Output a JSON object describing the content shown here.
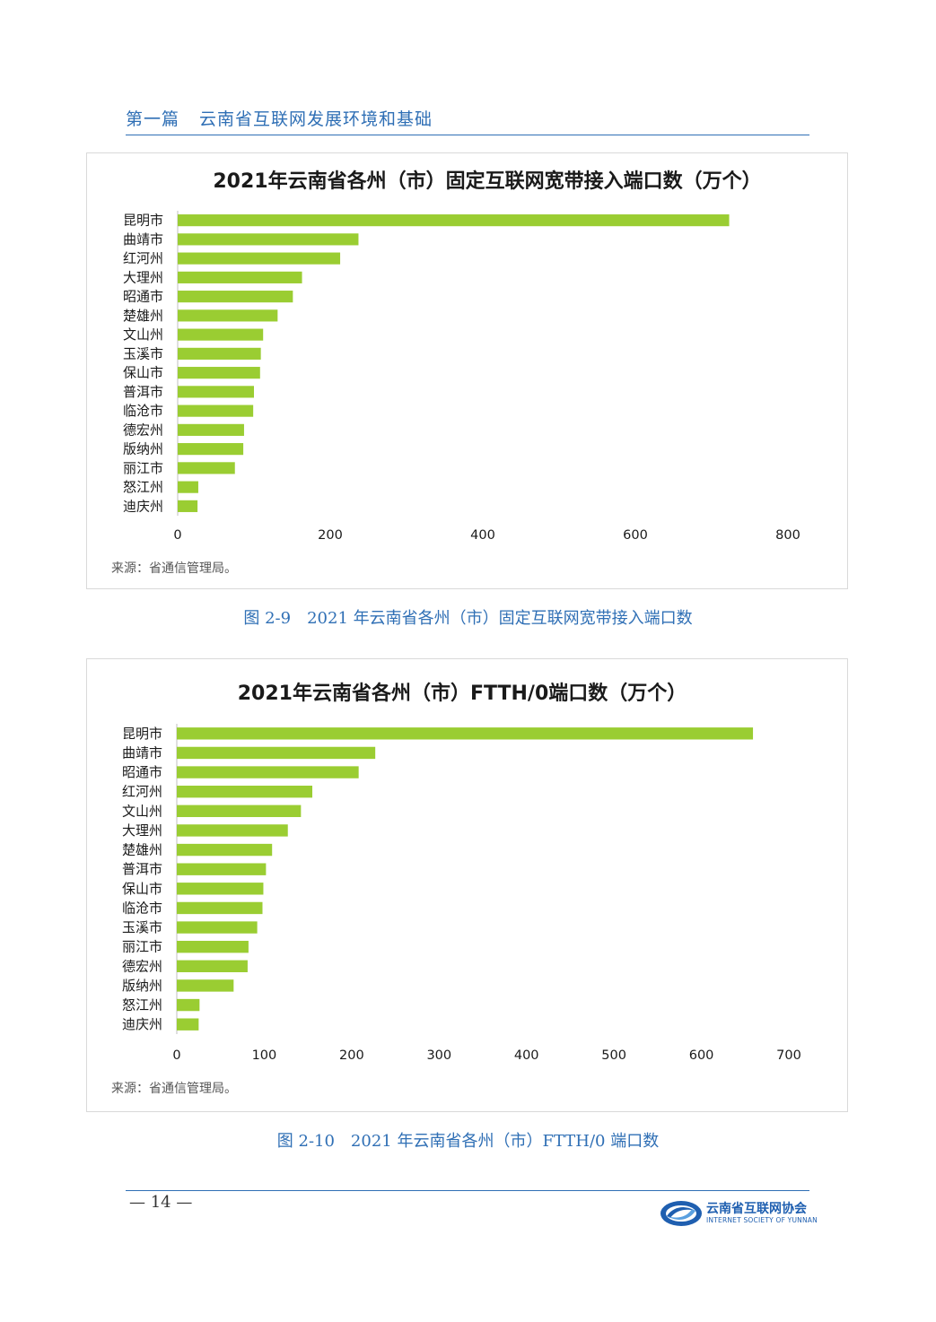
{
  "header": {
    "part": "第一篇",
    "title": "云南省互联网发展环境和基础"
  },
  "colors": {
    "bar": "#9acd32",
    "accent": "#2f6fb5",
    "axis": "#bfbfbf"
  },
  "charts": [
    {
      "title": "2021年云南省各州（市）固定互联网宽带接入端口数（万个）",
      "source": "来源：省通信管理局。",
      "caption": "图 2-9　2021 年云南省各州（市）固定互联网宽带接入端口数"
    },
    {
      "title": "2021年云南省各州（市）FTTH/0端口数（万个）",
      "source": "来源：省通信管理局。",
      "caption": "图 2-10　2021 年云南省各州（市）FTTH/0 端口数"
    }
  ],
  "chart_data": [
    {
      "type": "bar",
      "orientation": "horizontal",
      "title": "2021年云南省各州（市）固定互联网宽带接入端口数（万个）",
      "categories": [
        "昆明市",
        "曲靖市",
        "红河州",
        "大理州",
        "昭通市",
        "楚雄州",
        "文山州",
        "玉溪市",
        "保山市",
        "普洱市",
        "临沧市",
        "德宏州",
        "版纳州",
        "丽江市",
        "怒江州",
        "迪庆州"
      ],
      "values": [
        723,
        237,
        213,
        163,
        151,
        131,
        112,
        109,
        108,
        100,
        99,
        87,
        86,
        75,
        27,
        26
      ],
      "xlim": [
        0,
        800
      ],
      "xticks": [
        0,
        200,
        400,
        600,
        800
      ],
      "grid": false,
      "legend": "none"
    },
    {
      "type": "bar",
      "orientation": "horizontal",
      "title": "2021年云南省各州（市）FTTH/0端口数（万个）",
      "categories": [
        "昆明市",
        "曲靖市",
        "昭通市",
        "红河州",
        "文山州",
        "大理州",
        "楚雄州",
        "普洱市",
        "保山市",
        "临沧市",
        "玉溪市",
        "丽江市",
        "德宏州",
        "版纳州",
        "怒江州",
        "迪庆州"
      ],
      "values": [
        659,
        227,
        208,
        155,
        142,
        127,
        109,
        102,
        99,
        98,
        92,
        82,
        81,
        65,
        26,
        25
      ],
      "xlim": [
        0,
        700
      ],
      "xticks": [
        0,
        100,
        200,
        300,
        400,
        500,
        600,
        700
      ],
      "grid": false,
      "legend": "none"
    }
  ],
  "footer": {
    "page_number": "— 14 —",
    "logo_cn": "云南省互联网协会",
    "logo_en": "INTERNET SOCIETY OF YUNNAN"
  }
}
